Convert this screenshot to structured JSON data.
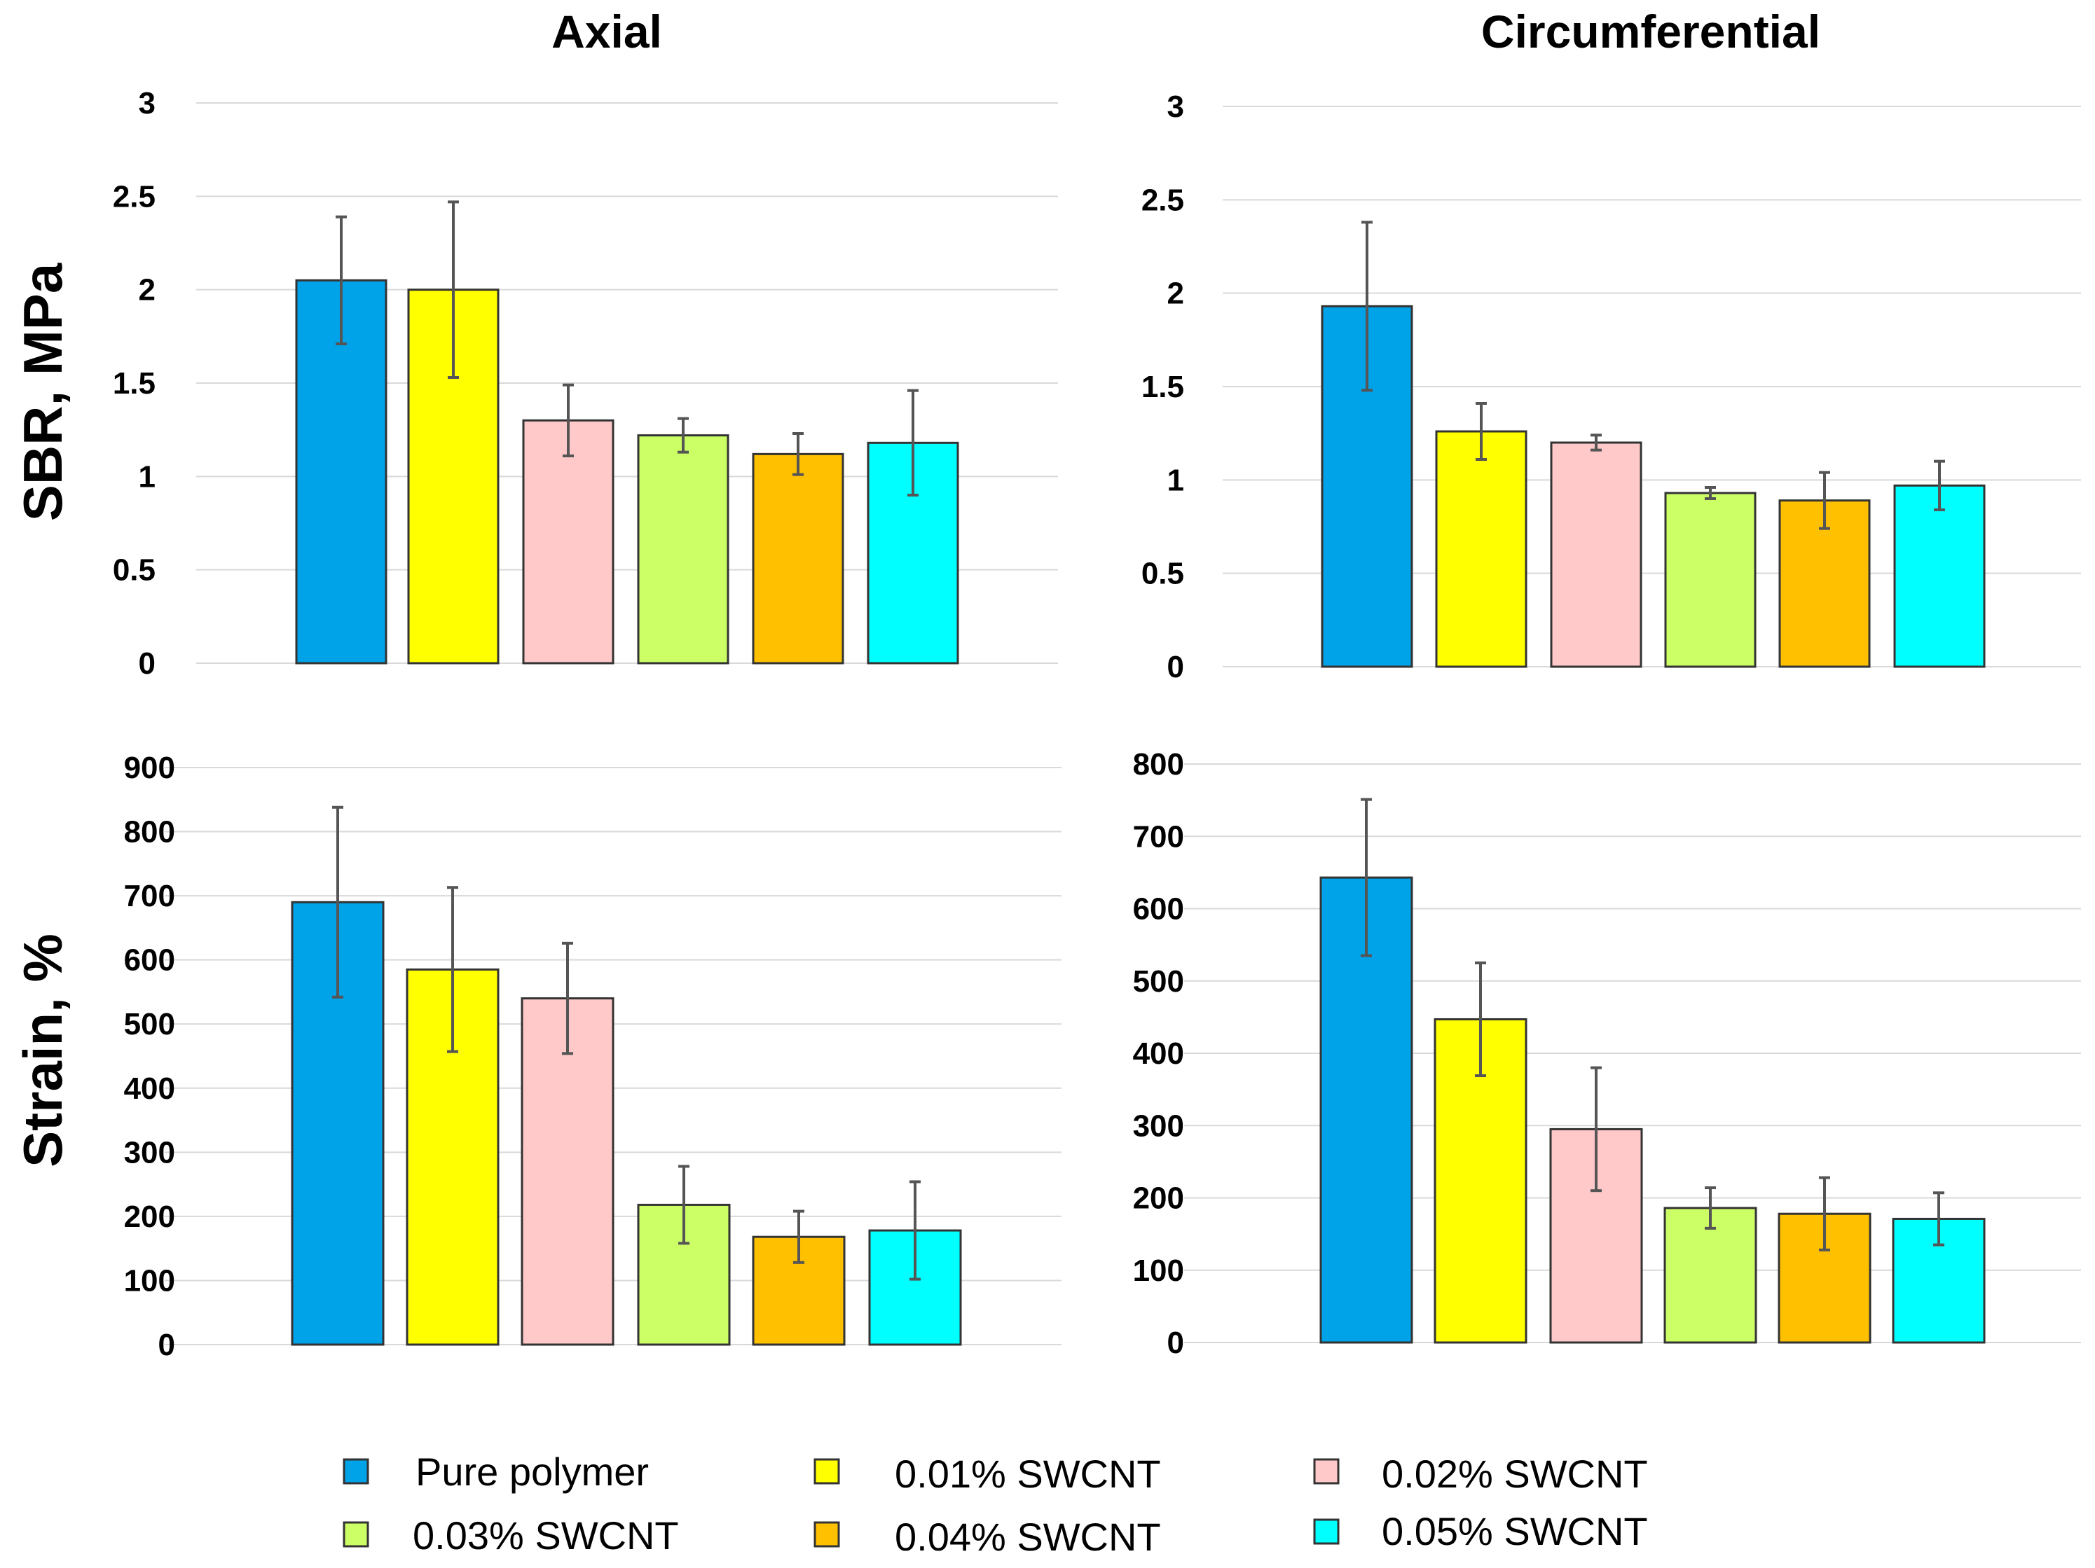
{
  "column_titles": [
    "Axial",
    "Circumferential"
  ],
  "row_labels": [
    "SBR, MPa",
    "Strain, %"
  ],
  "legend": [
    {
      "label": "Pure polymer",
      "color": "#00A2E8"
    },
    {
      "label": "0.01% SWCNT",
      "color": "#FFFF00"
    },
    {
      "label": "0.02% SWCNT",
      "color": "#FFC9C9"
    },
    {
      "label": "0.03% SWCNT",
      "color": "#CCFF66"
    },
    {
      "label": "0.04% SWCNT",
      "color": "#FFC000"
    },
    {
      "label": "0.05% SWCNT",
      "color": "#00FFFF"
    }
  ],
  "chart_data": [
    {
      "type": "bar",
      "title": "Axial",
      "ylabel": "SBR, MPa",
      "xlabel": "",
      "categories": [
        "Pure polymer",
        "0.01% SWCNT",
        "0.02% SWCNT",
        "0.03% SWCNT",
        "0.04% SWCNT",
        "0.05% SWCNT"
      ],
      "values": [
        2.05,
        2.0,
        1.3,
        1.22,
        1.12,
        1.18
      ],
      "errors": [
        0.34,
        0.47,
        0.19,
        0.09,
        0.11,
        0.28
      ],
      "ylim": [
        0,
        3
      ],
      "yticks": [
        "0",
        "0.5",
        "1",
        "1.5",
        "2",
        "2.5",
        "3"
      ],
      "grid": true
    },
    {
      "type": "bar",
      "title": "Circumferential",
      "ylabel": "SBR, MPa",
      "xlabel": "",
      "categories": [
        "Pure polymer",
        "0.01% SWCNT",
        "0.02% SWCNT",
        "0.03% SWCNT",
        "0.04% SWCNT",
        "0.05% SWCNT"
      ],
      "values": [
        1.93,
        1.26,
        1.2,
        0.93,
        0.89,
        0.97
      ],
      "errors": [
        0.45,
        0.15,
        0.04,
        0.03,
        0.15,
        0.13
      ],
      "ylim": [
        0,
        3
      ],
      "yticks": [
        "0",
        "0.5",
        "1",
        "1.5",
        "2",
        "2.5",
        "3"
      ],
      "grid": true
    },
    {
      "type": "bar",
      "title": "Axial",
      "ylabel": "Strain, %",
      "xlabel": "",
      "categories": [
        "Pure polymer",
        "0.01% SWCNT",
        "0.02% SWCNT",
        "0.03% SWCNT",
        "0.04% SWCNT",
        "0.05% SWCNT"
      ],
      "values": [
        690,
        585,
        540,
        218,
        168,
        178
      ],
      "errors": [
        148,
        128,
        86,
        60,
        40,
        76
      ],
      "ylim": [
        0,
        900
      ],
      "yticks": [
        "0",
        "100",
        "200",
        "300",
        "400",
        "500",
        "600",
        "700",
        "800",
        "900"
      ],
      "grid": true
    },
    {
      "type": "bar",
      "title": "Circumferential",
      "ylabel": "Strain, %",
      "xlabel": "",
      "categories": [
        "Pure polymer",
        "0.01% SWCNT",
        "0.02% SWCNT",
        "0.03% SWCNT",
        "0.04% SWCNT",
        "0.05% SWCNT"
      ],
      "values": [
        643,
        447,
        295,
        186,
        178,
        171
      ],
      "errors": [
        108,
        78,
        85,
        28,
        50,
        36
      ],
      "ylim": [
        0,
        800
      ],
      "yticks": [
        "0",
        "100",
        "200",
        "300",
        "400",
        "500",
        "600",
        "700",
        "800"
      ],
      "grid": true
    }
  ]
}
